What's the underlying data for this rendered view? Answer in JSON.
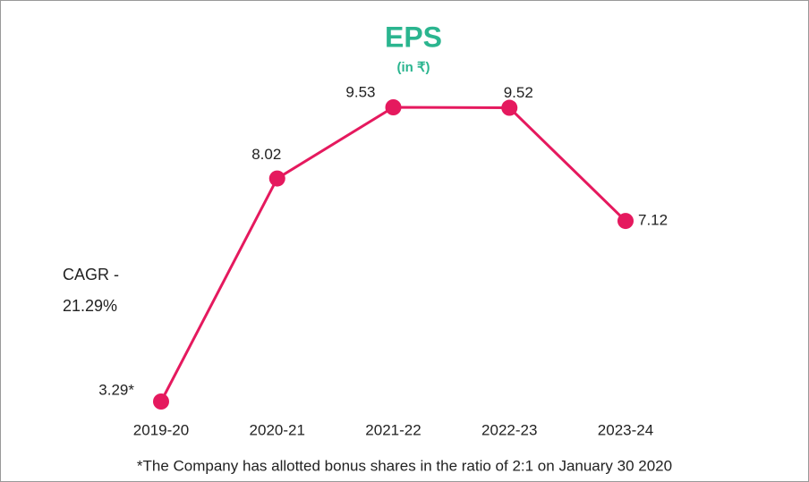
{
  "chart_data": {
    "type": "line",
    "title": "EPS",
    "subtitle": "(in ₹)",
    "categories": [
      "2019-20",
      "2020-21",
      "2021-22",
      "2022-23",
      "2023-24"
    ],
    "series": [
      {
        "name": "EPS",
        "color": "#e5195e",
        "values": [
          3.29,
          8.02,
          9.53,
          9.52,
          7.12
        ],
        "value_labels": [
          "3.29*",
          "8.02",
          "9.53",
          "9.52",
          "7.12"
        ]
      }
    ],
    "annotations": [
      "CAGR -",
      "21.29%"
    ],
    "footnote": "*The Company has allotted bonus shares in the ratio of 2:1 on January 30 2020"
  }
}
